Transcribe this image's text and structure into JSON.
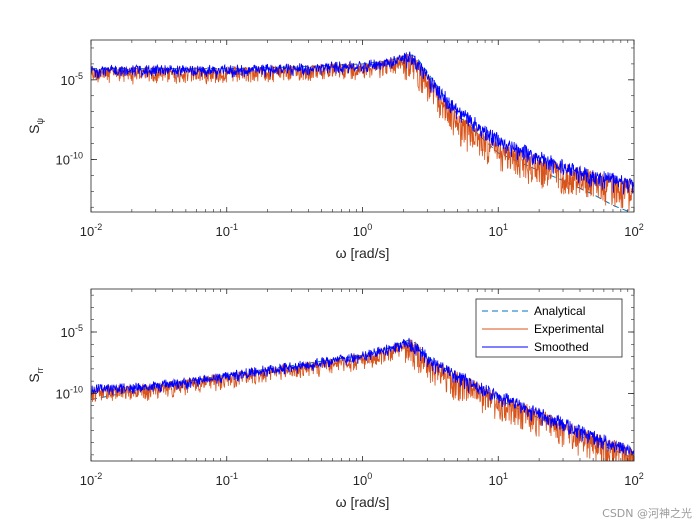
{
  "chart_data": [
    {
      "type": "line",
      "xscale": "log",
      "yscale": "log",
      "xlabel": "ω [rad/s]",
      "ylabel": "S_ψ",
      "ylabel_main": "S",
      "ylabel_sub": "ψ",
      "xlim": [
        0.01,
        100
      ],
      "ylim_exp": [
        -13.3,
        -2.5
      ],
      "xticks": [
        {
          "base": "10",
          "exp": "-2"
        },
        {
          "base": "10",
          "exp": "-1"
        },
        {
          "base": "10",
          "exp": "0"
        },
        {
          "base": "10",
          "exp": "1"
        },
        {
          "base": "10",
          "exp": "2"
        }
      ],
      "xtick_values_exp": [
        -2,
        -1,
        0,
        1,
        2
      ],
      "yticks": [
        {
          "base": "10",
          "exp": "-5"
        },
        {
          "base": "10",
          "exp": "-10"
        }
      ],
      "ytick_values_exp": [
        -5,
        -10
      ],
      "series": [
        {
          "name": "Analytical",
          "color": "#0072BD",
          "style": "dashed",
          "x_exp": [
            -2,
            -1.5,
            -1,
            -0.5,
            0,
            0.2,
            0.35,
            0.4,
            0.5,
            0.7,
            1.0,
            1.3,
            1.5,
            1.7,
            1.85,
            2
          ],
          "y_exp": [
            -4.3,
            -4.3,
            -4.3,
            -4.2,
            -4.0,
            -3.8,
            -3.4,
            -3.6,
            -4.8,
            -7.2,
            -9.6,
            -10.7,
            -11.4,
            -12.2,
            -12.9,
            -13.4
          ]
        },
        {
          "name": "Experimental",
          "color": "#D95319",
          "style": "solid",
          "x_exp": [
            -2,
            -1.5,
            -1,
            -0.5,
            0,
            0.2,
            0.35,
            0.4,
            0.5,
            0.7,
            1.0,
            1.3,
            1.5,
            1.7,
            1.85,
            2
          ],
          "y_exp": [
            -4.3,
            -4.3,
            -4.3,
            -4.2,
            -4.0,
            -3.8,
            -3.4,
            -3.7,
            -5.0,
            -7.2,
            -9.0,
            -9.9,
            -10.4,
            -10.8,
            -11.1,
            -11.4
          ],
          "noise_low": 1.8,
          "noise_high": 0.3
        },
        {
          "name": "Smoothed",
          "color": "#0000FF",
          "style": "solid",
          "x_exp": [
            -2,
            -1.5,
            -1,
            -0.5,
            0,
            0.2,
            0.35,
            0.4,
            0.5,
            0.7,
            1.0,
            1.3,
            1.5,
            1.7,
            1.85,
            2
          ],
          "y_exp": [
            -4.3,
            -4.3,
            -4.3,
            -4.2,
            -4.0,
            -3.8,
            -3.4,
            -3.7,
            -4.8,
            -6.8,
            -8.6,
            -9.7,
            -10.3,
            -10.8,
            -11.1,
            -11.4
          ],
          "noise_low": 0.8,
          "noise_high": 0.5
        }
      ],
      "legend": null
    },
    {
      "type": "line",
      "xscale": "log",
      "yscale": "log",
      "xlabel": "ω [rad/s]",
      "ylabel": "S_rr",
      "ylabel_main": "S",
      "ylabel_sub": "rr",
      "xlim": [
        0.01,
        100
      ],
      "ylim_exp": [
        -15.5,
        -1.5
      ],
      "xticks": [
        {
          "base": "10",
          "exp": "-2"
        },
        {
          "base": "10",
          "exp": "-1"
        },
        {
          "base": "10",
          "exp": "0"
        },
        {
          "base": "10",
          "exp": "1"
        },
        {
          "base": "10",
          "exp": "2"
        }
      ],
      "xtick_values_exp": [
        -2,
        -1,
        0,
        1,
        2
      ],
      "yticks": [
        {
          "base": "10",
          "exp": "-5"
        },
        {
          "base": "10",
          "exp": "-10"
        }
      ],
      "ytick_values_exp": [
        -5,
        -10
      ],
      "series": [
        {
          "name": "Analytical",
          "color": "#0072BD",
          "style": "dashed",
          "x_exp": [
            -2,
            -1.5,
            -1,
            -0.5,
            0,
            0.2,
            0.35,
            0.4,
            0.5,
            0.7,
            1.0,
            1.5,
            2
          ],
          "y_exp": [
            -10.5,
            -9.4,
            -8.5,
            -7.7,
            -6.9,
            -6.3,
            -5.6,
            -6.0,
            -7.2,
            -8.6,
            -10.5,
            -13.0,
            -15.3
          ]
        },
        {
          "name": "Experimental",
          "color": "#D95319",
          "style": "solid",
          "x_exp": [
            -2,
            -1.5,
            -1,
            -0.5,
            0,
            0.2,
            0.35,
            0.4,
            0.5,
            0.7,
            1.0,
            1.5,
            2
          ],
          "y_exp": [
            -9.6,
            -9.3,
            -8.5,
            -7.7,
            -6.9,
            -6.3,
            -5.6,
            -6.0,
            -7.2,
            -8.4,
            -10.0,
            -12.4,
            -14.6
          ],
          "noise_low": 2.2,
          "noise_high": 0.4
        },
        {
          "name": "Smoothed",
          "color": "#0000FF",
          "style": "solid",
          "x_exp": [
            -2,
            -1.5,
            -1,
            -0.5,
            0,
            0.2,
            0.35,
            0.4,
            0.5,
            0.7,
            1.0,
            1.5,
            2
          ],
          "y_exp": [
            -9.6,
            -9.3,
            -8.5,
            -7.7,
            -6.9,
            -6.3,
            -5.6,
            -6.0,
            -7.2,
            -8.4,
            -10.0,
            -12.4,
            -14.6
          ],
          "noise_low": 0.8,
          "noise_high": 0.7
        }
      ],
      "legend": {
        "position": "top-right",
        "entries": [
          "Analytical",
          "Experimental",
          "Smoothed"
        ]
      }
    }
  ],
  "watermark": "CSDN @河神之光"
}
